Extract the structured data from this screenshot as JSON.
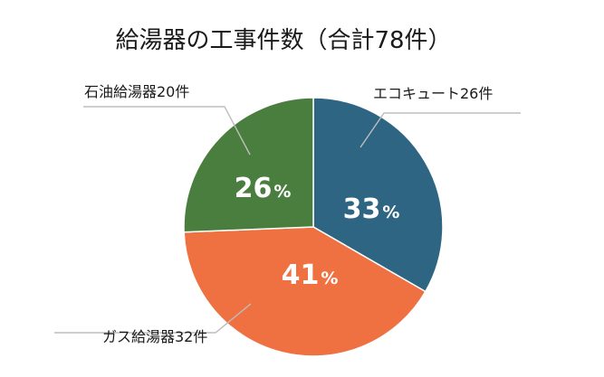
{
  "chart_data": {
    "type": "pie",
    "title": "給湯器の工事件数（合計78件）",
    "slices": [
      {
        "category": "エコキュート",
        "count": 26,
        "label": "エコキュート26件",
        "percent_value": "33",
        "percent_symbol": "%",
        "color": "#2e6583"
      },
      {
        "category": "ガス給湯器",
        "count": 32,
        "label": "ガス給湯器32件",
        "percent_value": "41",
        "percent_symbol": "%",
        "color": "#ef7142"
      },
      {
        "category": "石油給湯器",
        "count": 20,
        "label": "石油給湯器20件",
        "percent_value": "26",
        "percent_symbol": "%",
        "color": "#4a7e3f"
      }
    ],
    "start": "12 o'clock",
    "direction": "clockwise",
    "slice_border_color": "#ffffff",
    "leader_line_color": "#bdbdbd"
  }
}
